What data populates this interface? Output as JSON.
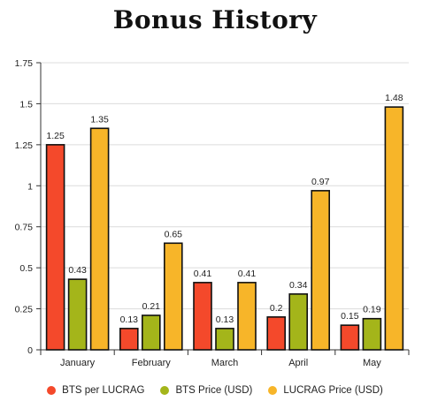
{
  "chart_data": {
    "type": "bar",
    "title": "Bonus History",
    "categories": [
      "January",
      "February",
      "March",
      "April",
      "May"
    ],
    "series": [
      {
        "name": "BTS per LUCRAG",
        "color": "#f4492b",
        "values": [
          1.25,
          0.13,
          0.41,
          0.2,
          0.15
        ]
      },
      {
        "name": "BTS Price (USD)",
        "color": "#a4b51a",
        "values": [
          0.43,
          0.21,
          0.13,
          0.34,
          0.19
        ]
      },
      {
        "name": "LUCRAG Price (USD)",
        "color": "#f7b529",
        "values": [
          1.35,
          0.65,
          0.41,
          0.97,
          1.48
        ]
      }
    ],
    "yticks": [
      "0",
      "0.25",
      "0.5",
      "0.75",
      "1",
      "1.25",
      "1.5",
      "1.75"
    ],
    "ylim": [
      0,
      1.75
    ],
    "grid": true,
    "legend_position": "bottom"
  }
}
